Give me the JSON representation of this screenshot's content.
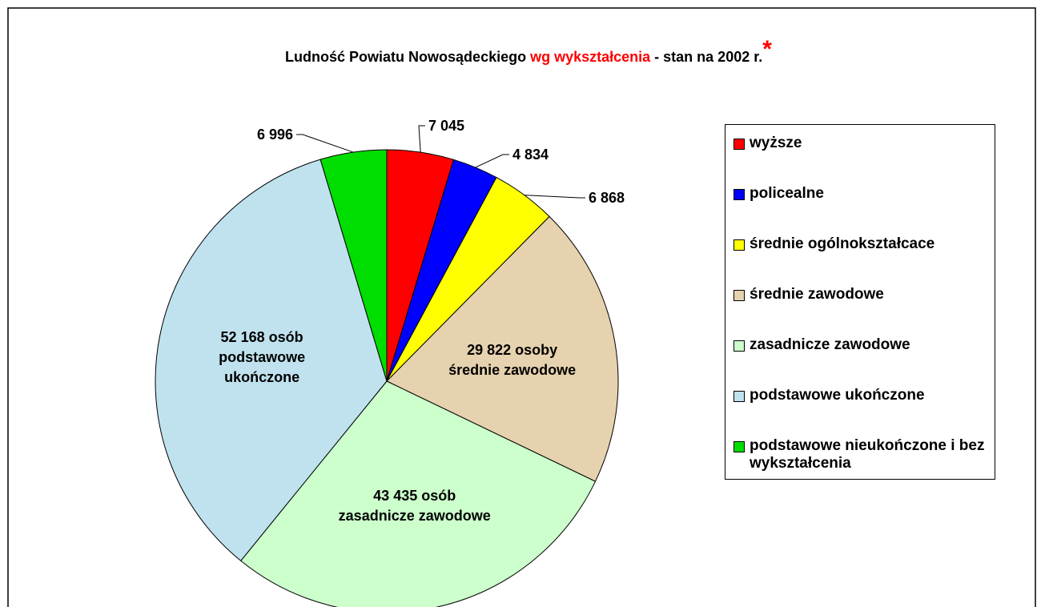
{
  "chart_data": {
    "type": "pie",
    "title_parts": [
      {
        "text": "Ludność Powiatu Nowosądeckiego",
        "color": "#000000"
      },
      {
        "text": "wg wykształcenia",
        "color": "#ff0000"
      },
      {
        "text": "- stan na 2002 r.",
        "color": "#000000"
      },
      {
        "text": "*",
        "color": "#ff0000"
      }
    ],
    "categories": [
      "wyższe",
      "policealne",
      "średnie ogólnokształcace",
      "średnie zawodowe",
      "zasadnicze zawodowe",
      "podstawowe ukończone",
      "podstawowe nieukończone i bez wykształcenia"
    ],
    "values": [
      7045,
      4834,
      6868,
      29822,
      43435,
      52168,
      6996
    ],
    "value_labels": [
      [
        "7 045"
      ],
      [
        "4 834"
      ],
      [
        "6 868"
      ],
      [
        "29 822 osoby",
        "średnie zawodowe"
      ],
      [
        "43 435 osób",
        "zasadnicze zawodowe"
      ],
      [
        "52 168 osób",
        "podstawowe",
        "ukończone"
      ],
      [
        "6 996"
      ]
    ],
    "colors": [
      "#ff0000",
      "#0000ff",
      "#ffff00",
      "#e6d2ae",
      "#ccffcc",
      "#bfe2ee",
      "#00dd00"
    ]
  }
}
